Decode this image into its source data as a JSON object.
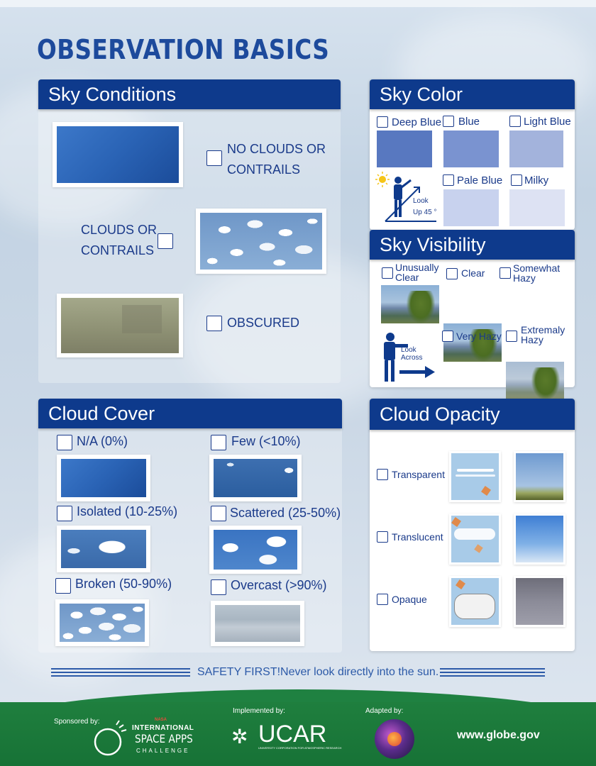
{
  "page": {
    "title": "OBSERVATION BASICS"
  },
  "sky_conditions": {
    "header": "Sky Conditions",
    "options": [
      "NO CLOUDS OR CONTRAILS",
      "CLOUDS OR CONTRAILS",
      "OBSCURED"
    ],
    "no_clouds_lines": [
      "NO CLOUDS OR",
      "CONTRAILS"
    ],
    "clouds_lines": [
      "CLOUDS OR",
      "CONTRAILS"
    ],
    "obscured": "OBSCURED"
  },
  "sky_color": {
    "header": "Sky Color",
    "options": [
      {
        "label": "Deep Blue",
        "color": "#5878c0"
      },
      {
        "label": "Blue",
        "color": "#7a93d0"
      },
      {
        "label": "Light Blue",
        "color": "#a3b3dc"
      },
      {
        "label": "Pale Blue",
        "color": "#c8d2ee"
      },
      {
        "label": "Milky",
        "color": "#dde2f3"
      }
    ],
    "look_text": [
      "Look",
      "Up 45 °"
    ]
  },
  "sky_visibility": {
    "header": "Sky Visibility",
    "options": [
      "Unusually Clear",
      "Clear",
      "Somewhat Hazy",
      "Very Hazy",
      "Extremaly Hazy"
    ],
    "unusually_lines": [
      "Unusually",
      "Clear"
    ],
    "somewhat_lines": [
      "Somewhat",
      "Hazy"
    ],
    "extremaly_lines": [
      "Extremaly",
      "Hazy"
    ],
    "look_text": [
      "Look",
      "Across"
    ]
  },
  "cloud_cover": {
    "header": "Cloud Cover",
    "options": [
      "N/A (0%)",
      "Few (<10%)",
      "Isolated (10-25%)",
      "Scattered (25-50%)",
      "Broken (50-90%)",
      "Overcast (>90%)"
    ]
  },
  "cloud_opacity": {
    "header": "Cloud Opacity",
    "options": [
      "Transparent",
      "Translucent",
      "Opaque"
    ]
  },
  "safety": {
    "text": "SAFETY FIRST!Never look directly into the sun."
  },
  "footer": {
    "sponsored_by": "Sponsored by:",
    "sponsor_name_line1": "INTERNATIONAL",
    "sponsor_name_line2": "SPACE APPS",
    "sponsor_name_line3": "CHALLENGE",
    "sponsor_mark": "NASA",
    "implemented_by": "Implemented by:",
    "implementer": "UCAR",
    "implementer_sub": "UNIVERSITY CORPORATION FOR ATMOSPHERIC RESEARCH",
    "adapted_by": "Adapted by:",
    "website": "www.globe.gov",
    "brand_green": "#1f7f3e"
  }
}
